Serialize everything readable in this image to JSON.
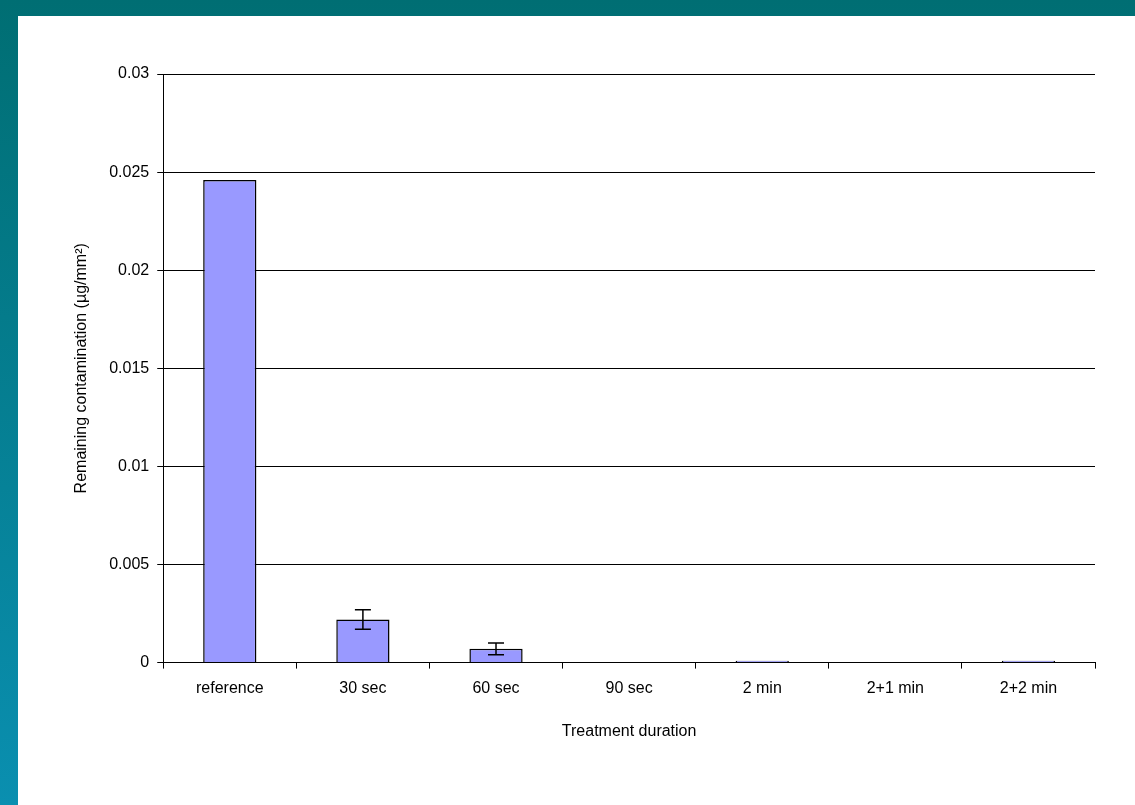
{
  "chart_data": {
    "type": "bar",
    "xlabel": "Treatment duration",
    "ylabel": "Remaining contamination (µg/mm²)",
    "categories": [
      "reference",
      "30 sec",
      "60 sec",
      "90 sec",
      "2 min",
      "2+1 min",
      "2+2 min"
    ],
    "values": [
      0.0246,
      0.0022,
      0.0007,
      0,
      0.0001,
      0,
      0.0001
    ],
    "errors": [
      null,
      0.0005,
      0.0003,
      null,
      null,
      null,
      null
    ],
    "color": "#9999ff",
    "ylim": [
      0,
      0.03
    ],
    "yticks": [
      0,
      0.005,
      0.01,
      0.015,
      0.02,
      0.025,
      0.03
    ],
    "grid": "y",
    "legend": false
  }
}
